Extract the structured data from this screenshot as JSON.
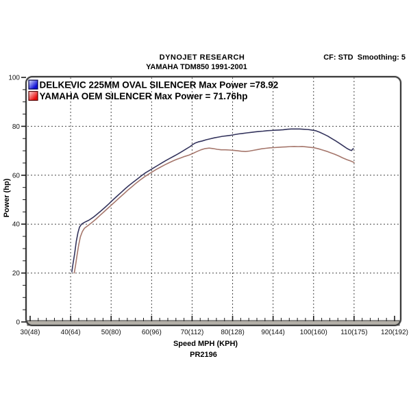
{
  "header": {
    "brand": "DYNOJET RESEARCH",
    "subtitle": "YAMAHA TDM850 1991-2001",
    "settings": "CF: STD  Smoothing: 5"
  },
  "footer": {
    "xlabel": "Speed MPH (KPH)",
    "run_id": "PR2196"
  },
  "chart_data": {
    "type": "line",
    "title": "DYNOJET RESEARCH",
    "subtitle": "YAMAHA TDM850 1991-2001",
    "xlabel": "Speed MPH (KPH)",
    "ylabel": "Power (hp)",
    "xlim": [
      30,
      120
    ],
    "ylim": [
      0,
      100
    ],
    "x_major_ticks": [
      30,
      40,
      50,
      60,
      70,
      80,
      90,
      100,
      110,
      120
    ],
    "x_tick_labels": [
      "30(48)",
      "40(64)",
      "50(80)",
      "60(96)",
      "70(112)",
      "80(128)",
      "90(144)",
      "100(160)",
      "110(175)",
      "120(192)"
    ],
    "x_minor_step": 2,
    "y_major_ticks": [
      0,
      20,
      40,
      60,
      80,
      100
    ],
    "y_tick_labels": [
      "0",
      "20",
      "40",
      "60",
      "80",
      "100"
    ],
    "y_minor_step": 5,
    "x_gridlines": [
      40,
      50,
      60,
      70,
      80,
      90,
      100,
      110
    ],
    "y_gridlines": [
      20,
      40,
      60,
      80
    ],
    "grid_style": "dashed",
    "legend_position": "top-left-inside",
    "series": [
      {
        "id": "delkevic",
        "label": "DELKEVIC 225MM OVAL SILENCER Max Power =78.92",
        "max_power_hp": 78.92,
        "color": "#33335c",
        "swatch_light": "#dfe6ff",
        "swatch_dark": "#0d0dd6",
        "swatch_border": "#00004a",
        "points": [
          [
            40.3,
            20.5
          ],
          [
            40.6,
            24
          ],
          [
            41,
            28
          ],
          [
            41.4,
            33
          ],
          [
            41.8,
            36.5
          ],
          [
            42.2,
            38.8
          ],
          [
            42.7,
            40
          ],
          [
            43.5,
            40.8
          ],
          [
            44.5,
            41.6
          ],
          [
            45.5,
            42.7
          ],
          [
            46.5,
            44
          ],
          [
            47.5,
            45.4
          ],
          [
            48.5,
            46.9
          ],
          [
            49.5,
            48.4
          ],
          [
            50.5,
            50
          ],
          [
            51.5,
            51.5
          ],
          [
            52.5,
            53
          ],
          [
            53.5,
            54.5
          ],
          [
            54.5,
            55.9
          ],
          [
            55.5,
            57.2
          ],
          [
            56.5,
            58.5
          ],
          [
            57.5,
            59.8
          ],
          [
            58.5,
            61
          ],
          [
            59.5,
            62
          ],
          [
            60.5,
            63
          ],
          [
            61.5,
            64
          ],
          [
            62.5,
            65
          ],
          [
            63.5,
            66
          ],
          [
            64.5,
            66.9
          ],
          [
            65.5,
            67.8
          ],
          [
            66.5,
            68.7
          ],
          [
            67.5,
            69.7
          ],
          [
            68.5,
            70.7
          ],
          [
            69.5,
            71.7
          ],
          [
            70.2,
            72.6
          ],
          [
            70.8,
            73.2
          ],
          [
            71.5,
            73.6
          ],
          [
            72.5,
            74
          ],
          [
            73.5,
            74.5
          ],
          [
            74.5,
            74.9
          ],
          [
            75.5,
            75.3
          ],
          [
            76.5,
            75.6
          ],
          [
            77.5,
            75.9
          ],
          [
            78.5,
            76.1
          ],
          [
            79.5,
            76.3
          ],
          [
            80.5,
            76.6
          ],
          [
            81.5,
            76.9
          ],
          [
            82.5,
            77.1
          ],
          [
            83.5,
            77.3
          ],
          [
            84.5,
            77.5
          ],
          [
            85.5,
            77.7
          ],
          [
            86.5,
            77.9
          ],
          [
            87.5,
            78
          ],
          [
            88.5,
            78.2
          ],
          [
            89.5,
            78.3
          ],
          [
            90.5,
            78.4
          ],
          [
            91.5,
            78.5
          ],
          [
            92.5,
            78.6
          ],
          [
            93.5,
            78.8
          ],
          [
            94.5,
            78.9
          ],
          [
            95.5,
            78.92
          ],
          [
            96.5,
            78.9
          ],
          [
            97.5,
            78.8
          ],
          [
            98.5,
            78.7
          ],
          [
            99.5,
            78.5
          ],
          [
            100.5,
            78.2
          ],
          [
            101.5,
            77.6
          ],
          [
            102.5,
            76.8
          ],
          [
            103.5,
            76
          ],
          [
            104.5,
            75
          ],
          [
            105.5,
            74
          ],
          [
            106.5,
            72.9
          ],
          [
            107.5,
            71.8
          ],
          [
            108.3,
            70.9
          ],
          [
            109,
            70.3
          ],
          [
            109.4,
            70.1
          ],
          [
            109.8,
            70.9
          ]
        ]
      },
      {
        "id": "yamaha-oem",
        "label": "YAMAHA OEM SILENCER Max Power = 71.76hp",
        "max_power_hp": 71.76,
        "color": "#a5766b",
        "swatch_light": "#ffdcdc",
        "swatch_dark": "#e81010",
        "swatch_border": "#550000",
        "points": [
          [
            40.9,
            20
          ],
          [
            41.2,
            23
          ],
          [
            41.6,
            27.5
          ],
          [
            42,
            31.5
          ],
          [
            42.4,
            34.8
          ],
          [
            42.9,
            37
          ],
          [
            43.4,
            38.3
          ],
          [
            44.2,
            39.3
          ],
          [
            45.2,
            40.6
          ],
          [
            46.2,
            42
          ],
          [
            47.2,
            43.5
          ],
          [
            48.2,
            45
          ],
          [
            49.2,
            46.5
          ],
          [
            50.2,
            48
          ],
          [
            51.2,
            49.5
          ],
          [
            52.2,
            51
          ],
          [
            53.2,
            52.5
          ],
          [
            54.2,
            54
          ],
          [
            55.2,
            55.4
          ],
          [
            56.2,
            56.8
          ],
          [
            57.2,
            58.1
          ],
          [
            58.2,
            59.3
          ],
          [
            59.2,
            60.4
          ],
          [
            60.2,
            61.4
          ],
          [
            61.2,
            62.4
          ],
          [
            62.2,
            63.3
          ],
          [
            63.2,
            64.2
          ],
          [
            64.2,
            65
          ],
          [
            65.2,
            65.8
          ],
          [
            66.2,
            66.5
          ],
          [
            67.2,
            67.1
          ],
          [
            68.2,
            67.7
          ],
          [
            69.2,
            68.2
          ],
          [
            70.2,
            68.9
          ],
          [
            71.2,
            69.7
          ],
          [
            72.2,
            70.4
          ],
          [
            73.2,
            70.9
          ],
          [
            74.2,
            71.1
          ],
          [
            75.2,
            70.9
          ],
          [
            76.2,
            70.6
          ],
          [
            77.2,
            70.4
          ],
          [
            78.2,
            70.4
          ],
          [
            79.2,
            70.3
          ],
          [
            80.2,
            70.2
          ],
          [
            81.2,
            70
          ],
          [
            82.2,
            69.8
          ],
          [
            83.2,
            69.7
          ],
          [
            84.2,
            69.9
          ],
          [
            85.2,
            70.2
          ],
          [
            86.2,
            70.5
          ],
          [
            87.2,
            70.8
          ],
          [
            88.2,
            71
          ],
          [
            89.2,
            71.2
          ],
          [
            90.2,
            71.3
          ],
          [
            91.2,
            71.4
          ],
          [
            92.2,
            71.5
          ],
          [
            93.2,
            71.6
          ],
          [
            94.2,
            71.7
          ],
          [
            95.2,
            71.76
          ],
          [
            96.2,
            71.7
          ],
          [
            97.2,
            71.76
          ],
          [
            98.2,
            71.6
          ],
          [
            99.2,
            71.4
          ],
          [
            100.2,
            71.2
          ],
          [
            101.2,
            70.8
          ],
          [
            102.2,
            70.3
          ],
          [
            103.2,
            69.8
          ],
          [
            104.2,
            69.2
          ],
          [
            105.2,
            68.6
          ],
          [
            106.2,
            67.9
          ],
          [
            107.2,
            67.1
          ],
          [
            108.2,
            66.4
          ],
          [
            109.2,
            65.8
          ],
          [
            110,
            65.2
          ]
        ]
      }
    ],
    "frame_color": "#3c3c3c",
    "grid_color": "#454545",
    "band_color": "#b3afa7",
    "tick_label_color": "#111111"
  }
}
